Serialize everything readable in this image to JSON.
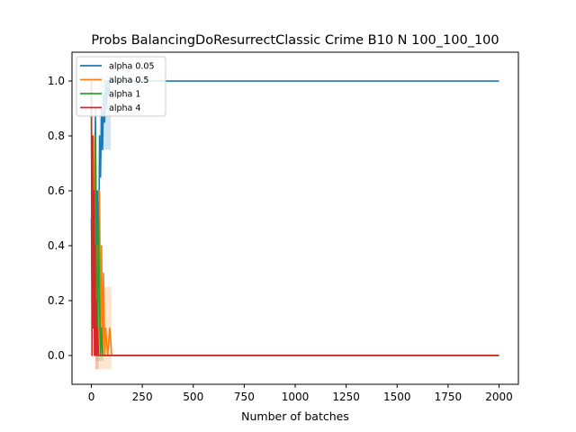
{
  "chart_data": {
    "type": "line",
    "title": "Probs BalancingDoResurrectClassic Crime B10 N 100_100_100",
    "xlabel": "Number of batches",
    "ylabel": "",
    "xlim": [
      -95,
      2095
    ],
    "ylim": [
      -0.105,
      1.105
    ],
    "xticks": [
      0,
      250,
      500,
      750,
      1000,
      1250,
      1500,
      1750,
      2000
    ],
    "yticks": [
      0.0,
      0.2,
      0.4,
      0.6,
      0.8,
      1.0
    ],
    "xtick_labels": [
      "0",
      "250",
      "500",
      "750",
      "1000",
      "1250",
      "1500",
      "1750",
      "2000"
    ],
    "ytick_labels": [
      "0.0",
      "0.2",
      "0.4",
      "0.6",
      "0.8",
      "1.0"
    ],
    "grid": false,
    "legend_position": "top-left",
    "series": [
      {
        "name": "alpha 0.05",
        "color": "#1f77b4",
        "points": [
          [
            0,
            0.5
          ],
          [
            5,
            0.1
          ],
          [
            10,
            0.7
          ],
          [
            15,
            0.3
          ],
          [
            20,
            0.9
          ],
          [
            25,
            0.4
          ],
          [
            30,
            0.6
          ],
          [
            35,
            0.2
          ],
          [
            40,
            0.8
          ],
          [
            45,
            0.65
          ],
          [
            50,
            0.9
          ],
          [
            55,
            0.75
          ],
          [
            60,
            0.95
          ],
          [
            65,
            0.85
          ],
          [
            70,
            1.0
          ],
          [
            75,
            0.9
          ],
          [
            80,
            1.0
          ],
          [
            85,
            0.95
          ],
          [
            90,
            1.0
          ],
          [
            100,
            1.0
          ],
          [
            2000,
            1.0
          ]
        ],
        "band_x": [
          40,
          95
        ],
        "band_y": [
          0.75,
          1.02
        ]
      },
      {
        "name": "alpha 0.5",
        "color": "#ff7f0e",
        "points": [
          [
            0,
            1.0
          ],
          [
            5,
            0.3
          ],
          [
            10,
            0.8
          ],
          [
            15,
            0.2
          ],
          [
            20,
            0.6
          ],
          [
            25,
            0.1
          ],
          [
            30,
            0.4
          ],
          [
            35,
            0.0
          ],
          [
            40,
            0.6
          ],
          [
            45,
            0.1
          ],
          [
            50,
            0.4
          ],
          [
            55,
            0.0
          ],
          [
            60,
            0.3
          ],
          [
            65,
            0.0
          ],
          [
            70,
            0.1
          ],
          [
            80,
            0.0
          ],
          [
            90,
            0.1
          ],
          [
            100,
            0.0
          ],
          [
            2000,
            0.0
          ]
        ],
        "band_x": [
          20,
          100
        ],
        "band_y": [
          -0.05,
          0.25
        ]
      },
      {
        "name": "alpha 1",
        "color": "#2ca02c",
        "points": [
          [
            0,
            0.9
          ],
          [
            5,
            0.2
          ],
          [
            10,
            0.6
          ],
          [
            15,
            0.1
          ],
          [
            20,
            0.8
          ],
          [
            25,
            0.3
          ],
          [
            30,
            0.1
          ],
          [
            35,
            0.5
          ],
          [
            40,
            0.2
          ],
          [
            45,
            0.0
          ],
          [
            50,
            0.1
          ],
          [
            55,
            0.0
          ],
          [
            60,
            0.0
          ],
          [
            2000,
            0.0
          ]
        ],
        "band_x": [
          25,
          60
        ],
        "band_y": [
          -0.02,
          0.2
        ]
      },
      {
        "name": "alpha 4",
        "color": "#d62728",
        "points": [
          [
            0,
            1.0
          ],
          [
            3,
            0.0
          ],
          [
            6,
            0.8
          ],
          [
            9,
            0.1
          ],
          [
            12,
            0.6
          ],
          [
            15,
            0.0
          ],
          [
            18,
            0.4
          ],
          [
            21,
            0.0
          ],
          [
            24,
            0.2
          ],
          [
            27,
            0.0
          ],
          [
            30,
            0.1
          ],
          [
            35,
            0.0
          ],
          [
            2000,
            0.0
          ]
        ],
        "band_x": [
          20,
          35
        ],
        "band_y": [
          -0.05,
          0.05
        ]
      }
    ]
  }
}
